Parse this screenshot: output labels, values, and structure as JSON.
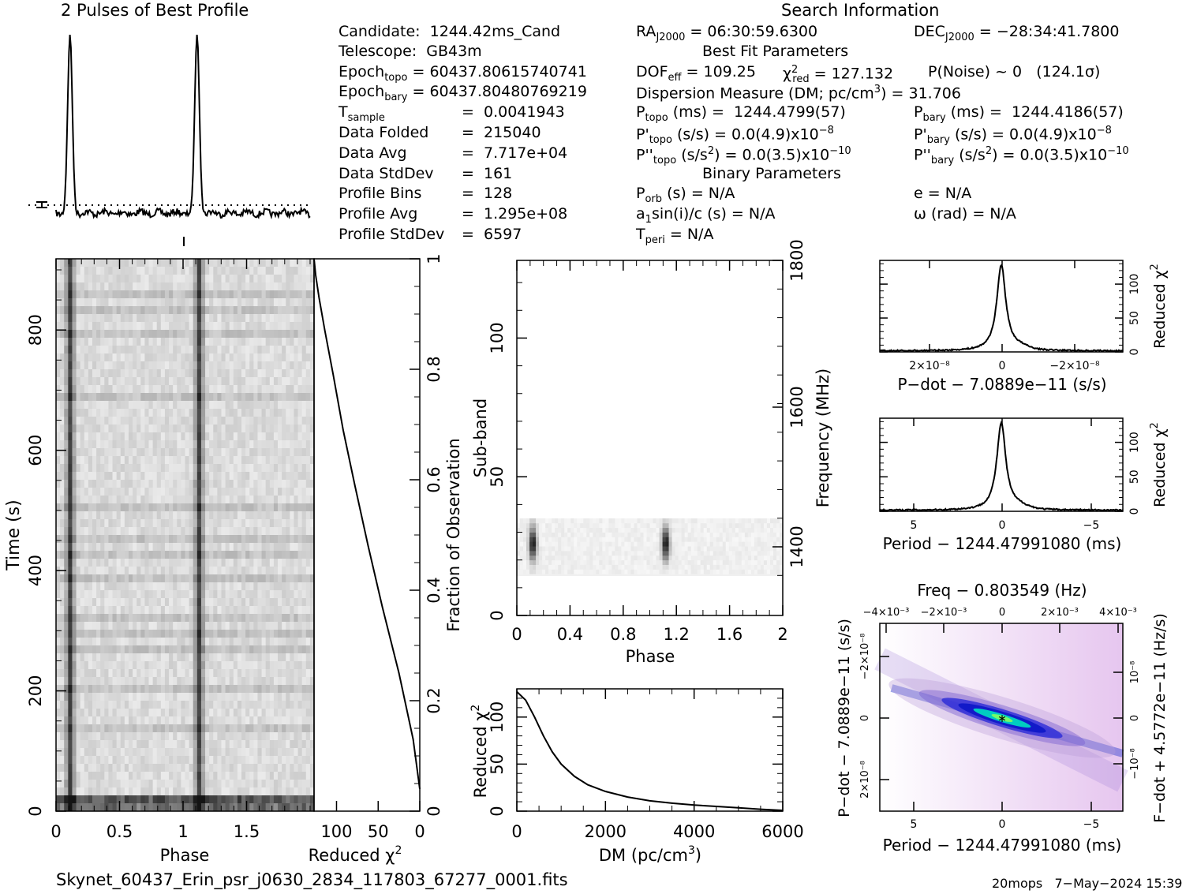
{
  "header": {
    "profile_title": "2 Pulses of Best Profile",
    "search_title": "Search Information"
  },
  "candidate_info": {
    "candidate": "Candidate:  1244.42ms_Cand",
    "telescope": "Telescope:  GB43m",
    "epoch_topo_label": "Epoch",
    "epoch_topo_sub": "topo",
    "epoch_topo_val": " = 60437.80615740741",
    "epoch_bary_label": "Epoch",
    "epoch_bary_sub": "bary",
    "epoch_bary_val": " = 60437.80480769219",
    "tsample_label": "T",
    "tsample_sub": "sample",
    "tsample_val": "=  0.0041943",
    "data_folded": "Data Folded",
    "data_folded_val": "=  215040",
    "data_avg": "Data Avg",
    "data_avg_val": "=  7.717e+04",
    "data_stddev": "Data StdDev",
    "data_stddev_val": "=  161",
    "profile_bins": "Profile Bins",
    "profile_bins_val": "=  128",
    "profile_avg": "Profile Avg",
    "profile_avg_val": "=  1.295e+08",
    "profile_stddev": "Profile StdDev",
    "profile_stddev_val": "=  6597"
  },
  "search_info": {
    "ra_label": "RA",
    "ra_sub": "J2000",
    "ra_val": " = 06:30:59.6300",
    "dec_label": "DEC",
    "dec_sub": "J2000",
    "dec_val": " = −28:34:41.7800",
    "best_fit_title": "Best Fit Parameters",
    "dof_label": "DOF",
    "dof_sub": "eff",
    "dof_val": " = 109.25",
    "chi_label": "χ",
    "chi_sup": "2",
    "chi_sub": "red",
    "chi_val": " = 127.132",
    "pnoise": "P(Noise) ~ 0   (124.1σ)",
    "dm_line": "Dispersion Measure (DM; pc/cm",
    "dm_sup": "3",
    "dm_val": ") = 31.706",
    "ptopo_label": "P",
    "ptopo_sub": "topo",
    "ptopo_val": " (ms) =  1244.4799(57)",
    "pbary_label": "P",
    "pbary_sub": "bary",
    "pbary_val": " (ms) =  1244.4186(57)",
    "pdtopo_label": "P'",
    "pdtopo_sub": "topo",
    "pdtopo_val": " (s/s) = 0.0(4.9)x10",
    "pdtopo_exp": "−8",
    "pdbary_label": "P'",
    "pdbary_sub": "bary",
    "pdbary_val": " (s/s) = 0.0(4.9)x10",
    "pdbary_exp": "−8",
    "pddtopo_label": "P''",
    "pddtopo_sub": "topo",
    "pddtopo_val": " (s/s",
    "pddtopo_sup2": "2",
    "pddtopo_val2": ") = 0.0(3.5)x10",
    "pddtopo_exp": "−10",
    "pddbary_label": "P''",
    "pddbary_sub": "bary",
    "pddbary_val": " (s/s",
    "pddbary_sup2": "2",
    "pddbary_val2": ") = 0.0(3.5)x10",
    "pddbary_exp": "−10",
    "binary_title": "Binary Parameters",
    "porb_label": "P",
    "porb_sub": "orb",
    "porb_val": " (s) = N/A",
    "e_line": "e = N/A",
    "a1_label": "a",
    "a1_sub": "1",
    "a1_val": "sin(i)/c (s) = N/A",
    "omega_line": "ω (rad) = N/A",
    "tperi_label": "T",
    "tperi_sub": "peri",
    "tperi_val": " = N/A"
  },
  "footer": {
    "filename": "Skynet_60437_Erin_psr_j0630_2834_117803_67277_0001.fits",
    "stamp": "20mops   7−May−2024 15:39"
  },
  "chart_data": [
    {
      "type": "line",
      "name": "profile",
      "title": "2 Pulses of Best Profile",
      "x_range": [
        0,
        2
      ],
      "pulse_phases": [
        0.11,
        1.11
      ]
    },
    {
      "type": "heatmap",
      "name": "time-phase",
      "xlabel": "Phase",
      "ylabel": "Time (s)",
      "xlim": [
        0,
        2
      ],
      "ylim": [
        0,
        900
      ],
      "x_ticks": [
        "0",
        "0.5",
        "1",
        "1.5"
      ],
      "y_ticks": [
        "0",
        "200",
        "400",
        "600",
        "800"
      ],
      "pulse_phases": [
        0.11,
        1.11
      ]
    },
    {
      "type": "line",
      "name": "chi-vs-time",
      "xlabel": "Reduced χ",
      "xlabel_sup": "2",
      "ylabel": "Fraction of Observation",
      "xlim": [
        127,
        0
      ],
      "ylim": [
        0,
        1
      ],
      "x_ticks": [
        "100",
        "50",
        "0"
      ],
      "y_ticks": [
        "0",
        "0.2",
        "0.4",
        "0.6",
        "0.8",
        "1"
      ],
      "x": [
        0,
        8,
        25,
        45,
        62,
        78,
        92,
        104,
        114,
        121,
        125,
        127
      ],
      "y": [
        0.04,
        0.13,
        0.25,
        0.37,
        0.48,
        0.59,
        0.69,
        0.79,
        0.87,
        0.93,
        0.97,
        1.0
      ]
    },
    {
      "type": "heatmap",
      "name": "subband-phase",
      "xlabel": "Phase",
      "ylabel": "Sub-band",
      "y2label": "Frequency (MHz)",
      "xlim": [
        0,
        2
      ],
      "ylim": [
        0,
        128
      ],
      "x_ticks": [
        "0",
        "0.4",
        "0.8",
        "1.2",
        "1.6",
        "2"
      ],
      "y_ticks": [
        "0",
        "50",
        "100"
      ],
      "y2_ticks": [
        "1400",
        "1600",
        "1800"
      ],
      "band_subbands": [
        15,
        35
      ],
      "pulse_phases": [
        0.12,
        1.12
      ]
    },
    {
      "type": "line",
      "name": "chi-vs-dm",
      "xlabel": "DM (pc/cm",
      "xlabel_sup": "3",
      "xlabel_end": ")",
      "ylabel": "Reduced χ",
      "ylabel_sup": "2",
      "xlim": [
        0,
        6000
      ],
      "ylim": [
        0,
        130
      ],
      "x_ticks": [
        "0",
        "2000",
        "4000",
        "6000"
      ],
      "y_ticks": [
        "0",
        "50",
        "100"
      ],
      "x": [
        0,
        200,
        400,
        600,
        800,
        1000,
        1300,
        1600,
        2000,
        2500,
        3000,
        3500,
        4000,
        4500,
        5000,
        5500,
        6000
      ],
      "y": [
        127,
        118,
        100,
        80,
        63,
        50,
        37,
        28,
        21,
        15,
        11,
        8.5,
        6.5,
        5,
        3.5,
        2,
        0.8
      ]
    },
    {
      "type": "line",
      "name": "chi-vs-pdot",
      "xlabel": "P−dot − 7.0889e−11 (s/s)",
      "ylabel": "Reduced χ",
      "ylabel_sup": "2",
      "xlim": [
        3e-08,
        -3e-08
      ],
      "ylim": [
        0,
        135
      ],
      "x_ticks": [
        "2×10⁻⁸",
        "0",
        "−2×10⁻⁸"
      ],
      "y_ticks": [
        "0",
        "50",
        "100"
      ],
      "peak": 127
    },
    {
      "type": "line",
      "name": "chi-vs-period",
      "xlabel": "Period − 1244.47991080 (ms)",
      "ylabel": "Reduced χ",
      "ylabel_sup": "2",
      "xlim": [
        7,
        -7
      ],
      "ylim": [
        0,
        135
      ],
      "x_ticks": [
        "5",
        "0",
        "−5"
      ],
      "y_ticks": [
        "0",
        "50",
        "100"
      ],
      "peak": 127
    },
    {
      "type": "heatmap",
      "name": "period-pdot",
      "title": "Freq − 0.803549 (Hz)",
      "xlabel": "Period − 1244.47991080 (ms)",
      "ylabel": "P−dot − 7.0889e−11 (s/s)",
      "y2label": "F−dot + 4.5772e−11 (Hz/s)",
      "x_ticks": [
        "5",
        "0",
        "−5"
      ],
      "top_ticks": [
        "−4×10⁻³",
        "−2×10⁻³",
        "0",
        "2×10⁻³",
        "4×10⁻³"
      ],
      "y_ticks": [
        "−2×10⁻⁸",
        "0",
        "2×10⁻⁸"
      ],
      "y2_ticks": [
        "10⁻⁸",
        "0",
        "−10⁻⁸"
      ],
      "colors": {
        "low": "#ffffff",
        "mid": "#e8c8f0",
        "high1": "#1020d0",
        "high2": "#00e0c0"
      }
    }
  ]
}
